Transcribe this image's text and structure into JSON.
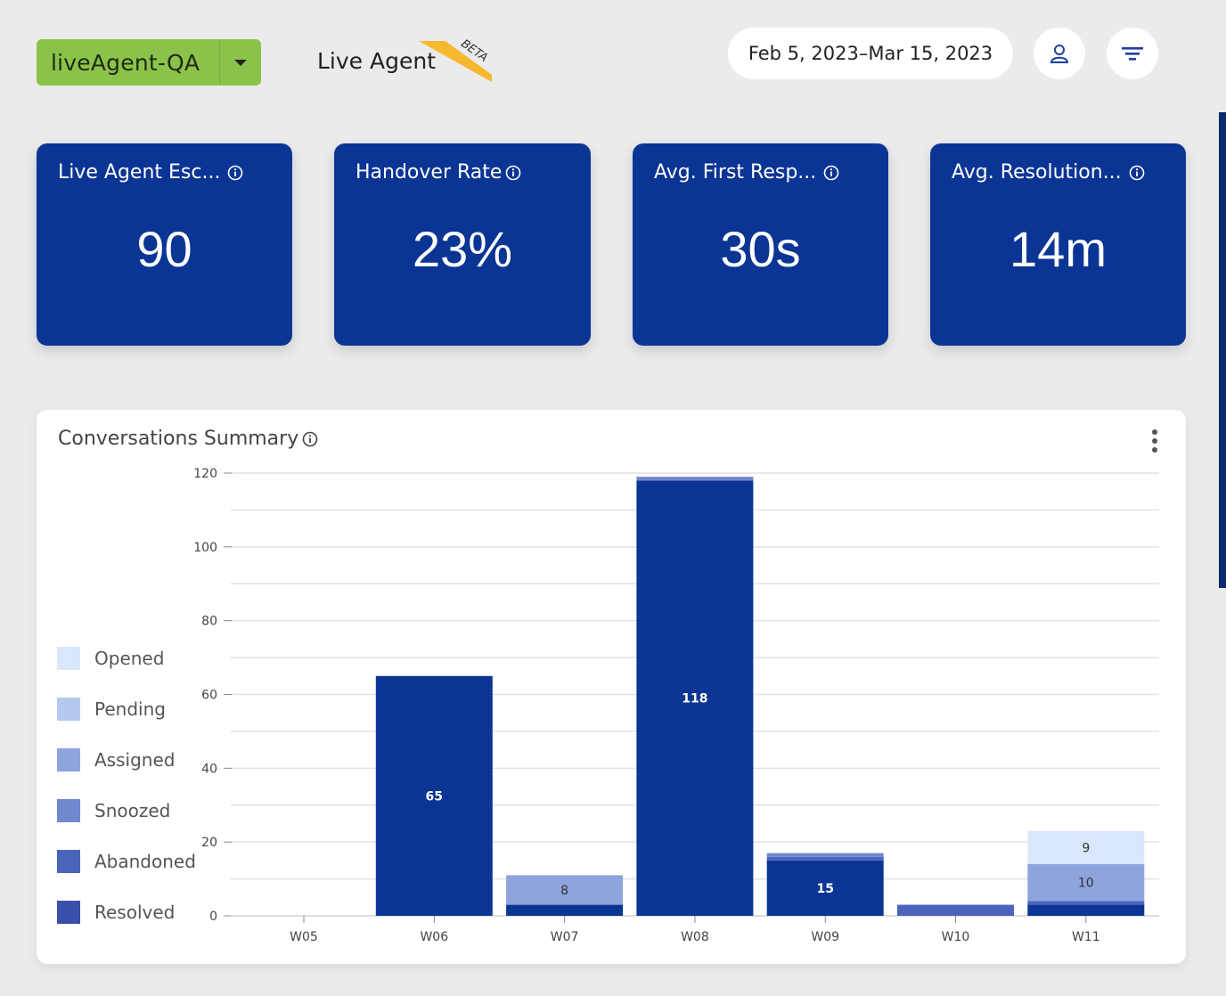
{
  "header": {
    "bot_name": "liveAgent-QA",
    "page_title": "Live Agent",
    "beta_label": "BETA",
    "date_range": "Feb 5, 2023–Mar 15, 2023"
  },
  "colors": {
    "accent_green": "#8bc34a",
    "card_blue": "#0b3594",
    "beta_yellow": "#f5b82e"
  },
  "icons": {
    "dropdown": "chevron-down-icon",
    "user": "user-icon",
    "filter": "filter-icon",
    "info": "info-icon",
    "menu": "more-vertical-icon"
  },
  "kpis": [
    {
      "title": "Live Agent Esc...",
      "value": "90"
    },
    {
      "title": "Handover Rate",
      "value": "23%"
    },
    {
      "title": "Avg. First Resp...",
      "value": "30s"
    },
    {
      "title": "Avg. Resolution...",
      "value": "14m"
    }
  ],
  "chart": {
    "title": "Conversations Summary",
    "legend": [
      {
        "label": "Opened",
        "color": "#dae6fc"
      },
      {
        "label": "Pending",
        "color": "#b5c8f0"
      },
      {
        "label": "Assigned",
        "color": "#8ea4dd"
      },
      {
        "label": "Snoozed",
        "color": "#7188cf"
      },
      {
        "label": "Abandoned",
        "color": "#4b64bb"
      },
      {
        "label": "Resolved",
        "color": "#3a4fa9"
      }
    ]
  },
  "chart_data": {
    "type": "bar",
    "stacked": true,
    "title": "Conversations Summary",
    "categories": [
      "W05",
      "W06",
      "W07",
      "W08",
      "W09",
      "W10",
      "W11"
    ],
    "ylim": [
      0,
      120
    ],
    "yticks": [
      0,
      20,
      40,
      60,
      80,
      100,
      120
    ],
    "grid": true,
    "legend_position": "left",
    "series": [
      {
        "name": "Resolved",
        "color": "#0b3594",
        "values": [
          0,
          65,
          3,
          118,
          15,
          0,
          3
        ]
      },
      {
        "name": "Abandoned",
        "color": "#4b64bb",
        "values": [
          0,
          0,
          0,
          0,
          1,
          3,
          1
        ]
      },
      {
        "name": "Snoozed",
        "color": "#7188cf",
        "values": [
          0,
          0,
          0,
          1,
          1,
          0,
          0
        ]
      },
      {
        "name": "Assigned",
        "color": "#8ea4dd",
        "values": [
          0,
          0,
          8,
          0,
          0,
          0,
          10
        ]
      },
      {
        "name": "Pending",
        "color": "#b5c8f0",
        "values": [
          0,
          0,
          0,
          0,
          0,
          0,
          0
        ]
      },
      {
        "name": "Opened",
        "color": "#dae6fc",
        "values": [
          0,
          0,
          0,
          0,
          0,
          0,
          9
        ]
      }
    ],
    "data_labels": [
      {
        "category": "W06",
        "series": "Resolved",
        "text": "65"
      },
      {
        "category": "W07",
        "series": "Assigned",
        "text": "8"
      },
      {
        "category": "W08",
        "series": "Resolved",
        "text": "118"
      },
      {
        "category": "W09",
        "series": "Resolved",
        "text": "15"
      },
      {
        "category": "W11",
        "series": "Assigned",
        "text": "10"
      },
      {
        "category": "W11",
        "series": "Opened",
        "text": "9"
      }
    ]
  }
}
